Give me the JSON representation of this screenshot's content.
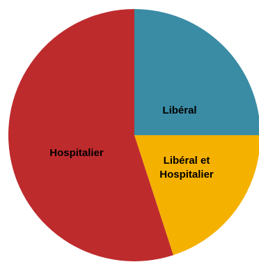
{
  "chart_data": {
    "type": "pie",
    "title": "",
    "start_angle_deg": 0,
    "direction": "clockwise",
    "legend": "none",
    "slices": [
      {
        "label": "Libéral",
        "label_lines": [
          "Libéral"
        ],
        "value": 25,
        "color": "#3A8CA5"
      },
      {
        "label": "Libéral et Hospitalier",
        "label_lines": [
          "Libéral et",
          "Hospitalier"
        ],
        "value": 20,
        "color": "#F5B100"
      },
      {
        "label": "Hospitalier",
        "label_lines": [
          "Hospitalier"
        ],
        "value": 55,
        "color": "#BE2B2D"
      }
    ]
  }
}
